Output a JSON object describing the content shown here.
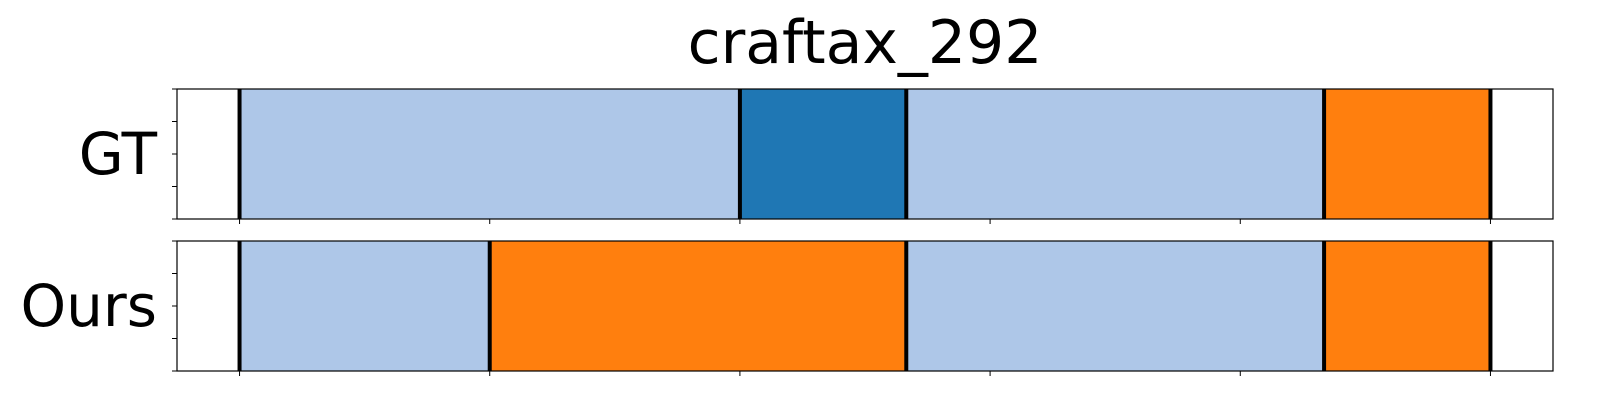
{
  "chart_data": {
    "type": "segmentation-timeline",
    "title": "craftax_292",
    "xlim": [
      0,
      11
    ],
    "ticks": [
      0.5,
      2.5,
      4.5,
      6.5,
      8.5,
      10.5
    ],
    "grid": false,
    "legend": "none",
    "rows": [
      {
        "label": "GT",
        "segments": [
          {
            "start": 0.5,
            "end": 4.5,
            "color": "#aec7e8"
          },
          {
            "start": 4.5,
            "end": 5.83,
            "color": "#1f77b4"
          },
          {
            "start": 5.83,
            "end": 9.17,
            "color": "#aec7e8"
          },
          {
            "start": 9.17,
            "end": 10.5,
            "color": "#ff7f0e"
          }
        ],
        "boundaries": [
          0.5,
          4.5,
          5.83,
          9.17,
          10.5
        ]
      },
      {
        "label": "Ours",
        "segments": [
          {
            "start": 0.5,
            "end": 2.5,
            "color": "#aec7e8"
          },
          {
            "start": 2.5,
            "end": 5.83,
            "color": "#ff7f0e"
          },
          {
            "start": 5.83,
            "end": 9.17,
            "color": "#aec7e8"
          },
          {
            "start": 9.17,
            "end": 10.5,
            "color": "#ff7f0e"
          }
        ],
        "boundaries": [
          0.5,
          2.5,
          5.83,
          9.17,
          10.5
        ]
      }
    ]
  }
}
